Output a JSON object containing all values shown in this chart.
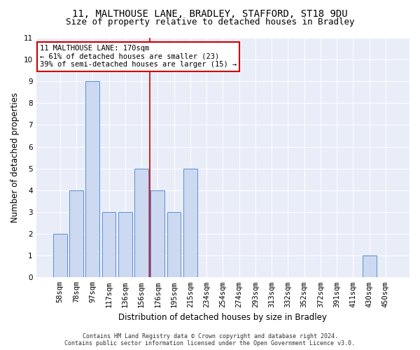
{
  "title1": "11, MALTHOUSE LANE, BRADLEY, STAFFORD, ST18 9DU",
  "title2": "Size of property relative to detached houses in Bradley",
  "xlabel": "Distribution of detached houses by size in Bradley",
  "ylabel": "Number of detached properties",
  "categories": [
    "58sqm",
    "78sqm",
    "97sqm",
    "117sqm",
    "136sqm",
    "156sqm",
    "176sqm",
    "195sqm",
    "215sqm",
    "234sqm",
    "254sqm",
    "274sqm",
    "293sqm",
    "313sqm",
    "332sqm",
    "352sqm",
    "372sqm",
    "391sqm",
    "411sqm",
    "430sqm",
    "450sqm"
  ],
  "values": [
    2,
    4,
    9,
    3,
    3,
    5,
    4,
    3,
    5,
    0,
    0,
    0,
    0,
    0,
    0,
    0,
    0,
    0,
    0,
    1,
    0
  ],
  "bar_color": "#ccd9f0",
  "bar_edge_color": "#5b8dd9",
  "ylim": [
    0,
    11
  ],
  "yticks": [
    0,
    1,
    2,
    3,
    4,
    5,
    6,
    7,
    8,
    9,
    10,
    11
  ],
  "red_line_index": 6,
  "annotation_title": "11 MALTHOUSE LANE: 170sqm",
  "annotation_line1": "← 61% of detached houses are smaller (23)",
  "annotation_line2": "39% of semi-detached houses are larger (15) →",
  "annotation_box_color": "#ffffff",
  "annotation_box_edge": "#cc0000",
  "red_line_color": "#cc0000",
  "footer1": "Contains HM Land Registry data © Crown copyright and database right 2024.",
  "footer2": "Contains public sector information licensed under the Open Government Licence v3.0.",
  "fig_bg_color": "#ffffff",
  "plot_bg_color": "#e8edf8",
  "grid_color": "#ffffff",
  "title_fontsize": 10,
  "subtitle_fontsize": 9,
  "axis_label_fontsize": 8.5,
  "tick_fontsize": 7.5,
  "annotation_fontsize": 7.5,
  "footer_fontsize": 6
}
